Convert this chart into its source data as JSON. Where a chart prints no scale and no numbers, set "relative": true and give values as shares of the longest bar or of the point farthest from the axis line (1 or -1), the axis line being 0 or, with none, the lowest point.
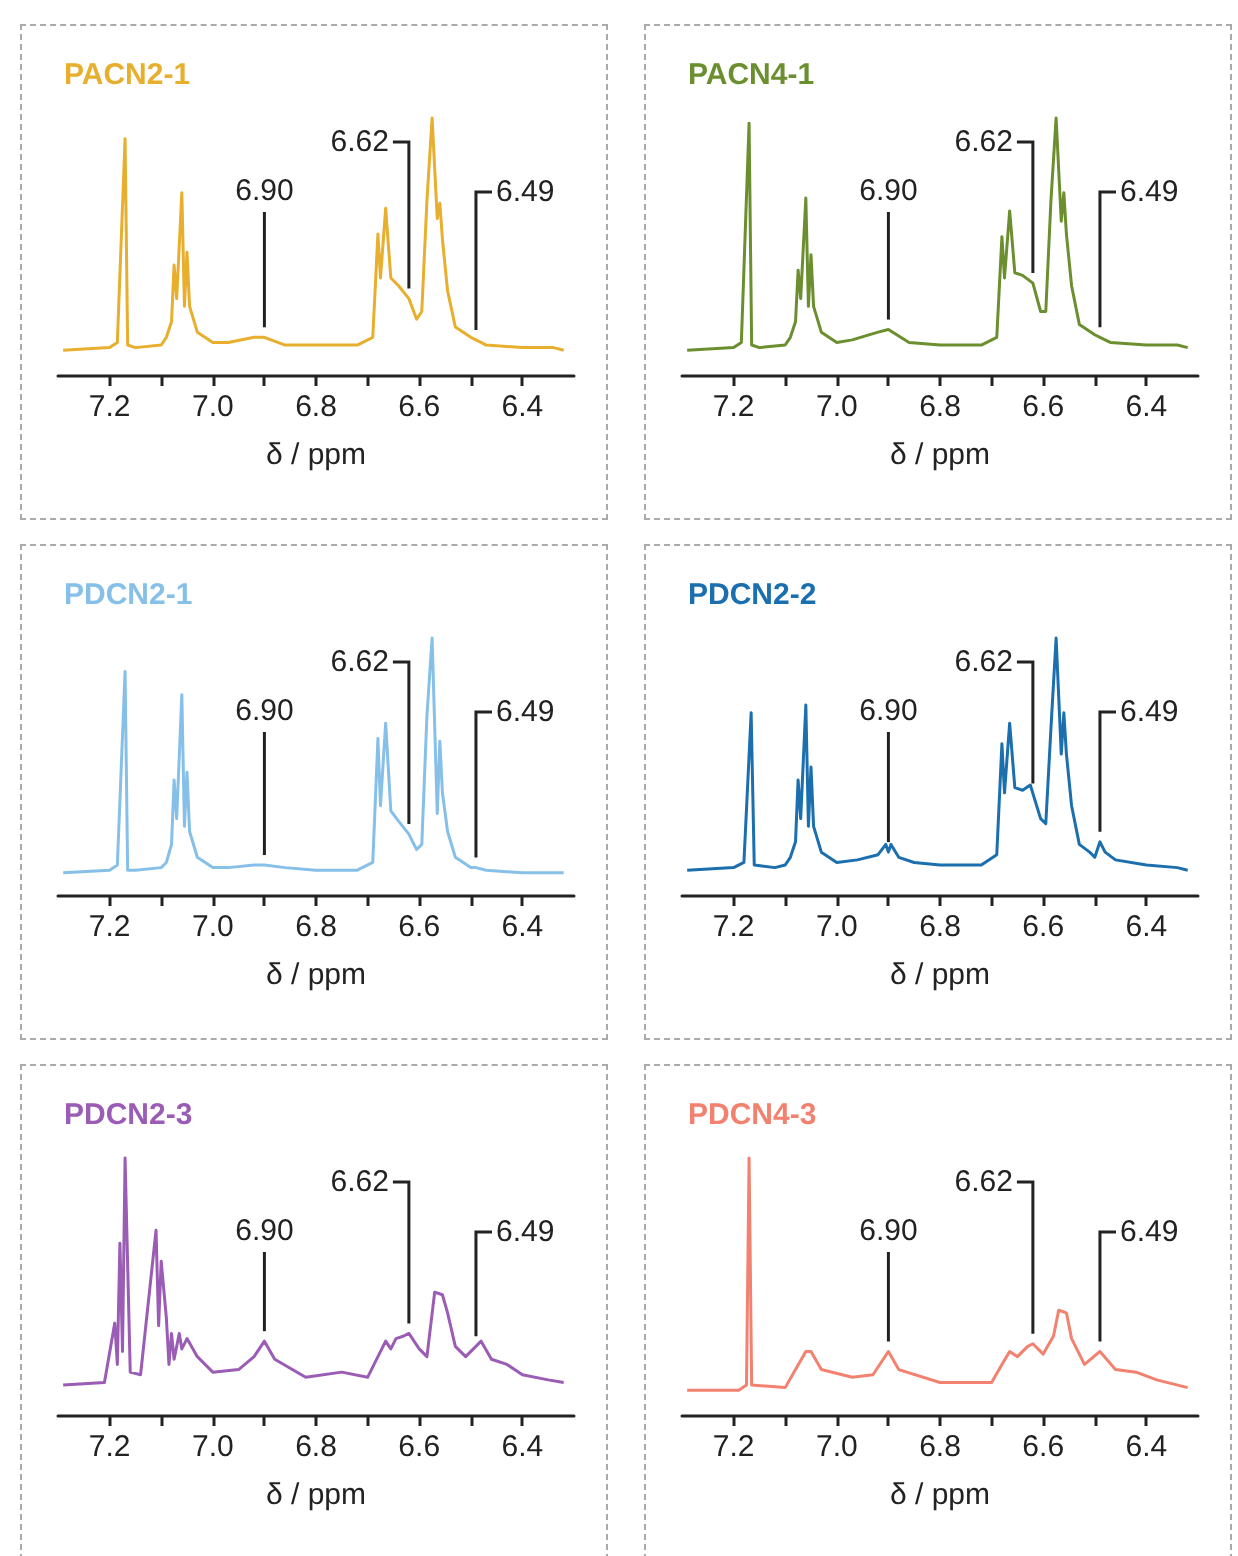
{
  "chart_data": [
    {
      "type": "line",
      "title": "PACN2-1",
      "xlabel": "δ / ppm",
      "color": "#e8ae2e",
      "relative": true,
      "xlim": [
        7.3,
        6.3
      ],
      "xticks": [
        7.2,
        {
          "value": 7.1,
          "label": null
        },
        {
          "value": 7,
          "label": "7.0"
        },
        {
          "value": 6.9,
          "label": null
        },
        6.8,
        {
          "value": 6.7,
          "label": null
        },
        6.6,
        {
          "value": 6.5,
          "label": null
        },
        6.4
      ],
      "ref_lines": [
        {
          "axis": "x",
          "value": 6.9,
          "label": "6.90"
        },
        {
          "axis": "x",
          "value": 6.62,
          "label": "6.62"
        },
        {
          "axis": "x",
          "value": 6.49,
          "label": "6.49"
        }
      ],
      "x": [
        7.29,
        7.2,
        7.185,
        7.17,
        7.165,
        7.15,
        7.1,
        7.09,
        7.08,
        7.075,
        7.07,
        7.06,
        7.055,
        7.05,
        7.045,
        7.03,
        7.0,
        6.97,
        6.92,
        6.9,
        6.86,
        6.8,
        6.72,
        6.69,
        6.68,
        6.675,
        6.665,
        6.655,
        6.64,
        6.62,
        6.605,
        6.595,
        6.585,
        6.575,
        6.565,
        6.56,
        6.555,
        6.545,
        6.53,
        6.5,
        6.49,
        6.47,
        6.4,
        6.34,
        6.32
      ],
      "values": [
        0.1,
        0.11,
        0.13,
        0.92,
        0.12,
        0.11,
        0.12,
        0.15,
        0.21,
        0.43,
        0.3,
        0.71,
        0.27,
        0.48,
        0.27,
        0.17,
        0.13,
        0.13,
        0.15,
        0.15,
        0.12,
        0.12,
        0.12,
        0.15,
        0.55,
        0.38,
        0.65,
        0.38,
        0.35,
        0.3,
        0.22,
        0.25,
        0.68,
        1.0,
        0.61,
        0.67,
        0.53,
        0.33,
        0.19,
        0.15,
        0.14,
        0.12,
        0.11,
        0.11,
        0.1
      ]
    },
    {
      "type": "line",
      "title": "PACN4-1",
      "xlabel": "δ / ppm",
      "color": "#6b8f2f",
      "relative": true,
      "xlim": [
        7.3,
        6.3
      ],
      "xticks": [
        7.2,
        {
          "value": 7.1,
          "label": null
        },
        {
          "value": 7,
          "label": "7.0"
        },
        {
          "value": 6.9,
          "label": null
        },
        6.8,
        {
          "value": 6.7,
          "label": null
        },
        6.6,
        {
          "value": 6.5,
          "label": null
        },
        6.4
      ],
      "ref_lines": [
        {
          "axis": "x",
          "value": 6.9,
          "label": "6.90"
        },
        {
          "axis": "x",
          "value": 6.62,
          "label": "6.62"
        },
        {
          "axis": "x",
          "value": 6.49,
          "label": "6.49"
        }
      ],
      "x": [
        7.29,
        7.2,
        7.185,
        7.17,
        7.165,
        7.15,
        7.1,
        7.09,
        7.08,
        7.075,
        7.07,
        7.06,
        7.055,
        7.05,
        7.045,
        7.03,
        7.0,
        6.97,
        6.92,
        6.9,
        6.86,
        6.8,
        6.72,
        6.69,
        6.68,
        6.675,
        6.665,
        6.655,
        6.64,
        6.62,
        6.605,
        6.595,
        6.585,
        6.575,
        6.565,
        6.56,
        6.555,
        6.545,
        6.53,
        6.5,
        6.49,
        6.47,
        6.4,
        6.34,
        6.32
      ],
      "values": [
        0.1,
        0.11,
        0.13,
        0.98,
        0.12,
        0.11,
        0.12,
        0.15,
        0.21,
        0.41,
        0.3,
        0.69,
        0.27,
        0.47,
        0.27,
        0.17,
        0.13,
        0.14,
        0.17,
        0.18,
        0.13,
        0.12,
        0.12,
        0.15,
        0.54,
        0.38,
        0.64,
        0.4,
        0.39,
        0.36,
        0.25,
        0.25,
        0.68,
        1.0,
        0.6,
        0.71,
        0.55,
        0.35,
        0.2,
        0.16,
        0.15,
        0.13,
        0.12,
        0.12,
        0.11
      ]
    },
    {
      "type": "line",
      "title": "PDCN2-1",
      "xlabel": "δ / ppm",
      "color": "#86c0e8",
      "relative": true,
      "xlim": [
        7.3,
        6.3
      ],
      "xticks": [
        7.2,
        {
          "value": 7.1,
          "label": null
        },
        {
          "value": 7,
          "label": "7.0"
        },
        {
          "value": 6.9,
          "label": null
        },
        6.8,
        {
          "value": 6.7,
          "label": null
        },
        6.6,
        {
          "value": 6.5,
          "label": null
        },
        6.4
      ],
      "ref_lines": [
        {
          "axis": "x",
          "value": 6.9,
          "label": "6.90"
        },
        {
          "axis": "x",
          "value": 6.62,
          "label": "6.62"
        },
        {
          "axis": "x",
          "value": 6.49,
          "label": "6.49"
        }
      ],
      "x": [
        7.29,
        7.2,
        7.185,
        7.17,
        7.165,
        7.15,
        7.1,
        7.09,
        7.08,
        7.075,
        7.07,
        7.06,
        7.055,
        7.05,
        7.045,
        7.03,
        7.0,
        6.97,
        6.92,
        6.9,
        6.86,
        6.8,
        6.72,
        6.69,
        6.68,
        6.675,
        6.665,
        6.655,
        6.64,
        6.62,
        6.605,
        6.595,
        6.585,
        6.575,
        6.565,
        6.56,
        6.555,
        6.545,
        6.53,
        6.5,
        6.49,
        6.47,
        6.4,
        6.34,
        6.32
      ],
      "values": [
        0.09,
        0.1,
        0.12,
        0.87,
        0.1,
        0.1,
        0.11,
        0.13,
        0.2,
        0.45,
        0.3,
        0.78,
        0.27,
        0.48,
        0.25,
        0.15,
        0.11,
        0.11,
        0.12,
        0.12,
        0.11,
        0.1,
        0.1,
        0.13,
        0.61,
        0.35,
        0.67,
        0.33,
        0.29,
        0.24,
        0.18,
        0.2,
        0.7,
        1.0,
        0.32,
        0.6,
        0.4,
        0.25,
        0.15,
        0.11,
        0.11,
        0.1,
        0.09,
        0.09,
        0.09
      ]
    },
    {
      "type": "line",
      "title": "PDCN2-2",
      "xlabel": "δ / ppm",
      "color": "#1b6fae",
      "relative": true,
      "xlim": [
        7.3,
        6.3
      ],
      "xticks": [
        7.2,
        {
          "value": 7.1,
          "label": null
        },
        {
          "value": 7,
          "label": "7.0"
        },
        {
          "value": 6.9,
          "label": null
        },
        6.8,
        {
          "value": 6.7,
          "label": null
        },
        6.6,
        {
          "value": 6.5,
          "label": null
        },
        6.4
      ],
      "ref_lines": [
        {
          "axis": "x",
          "value": 6.9,
          "label": "6.90"
        },
        {
          "axis": "x",
          "value": 6.62,
          "label": "6.62"
        },
        {
          "axis": "x",
          "value": 6.49,
          "label": "6.49"
        }
      ],
      "x": [
        7.29,
        7.2,
        7.18,
        7.166,
        7.16,
        7.12,
        7.1,
        7.09,
        7.08,
        7.075,
        7.07,
        7.06,
        7.055,
        7.05,
        7.045,
        7.03,
        7.0,
        6.96,
        6.92,
        6.905,
        6.9,
        6.895,
        6.88,
        6.85,
        6.8,
        6.72,
        6.69,
        6.68,
        6.675,
        6.665,
        6.655,
        6.64,
        6.625,
        6.605,
        6.595,
        6.585,
        6.575,
        6.565,
        6.56,
        6.555,
        6.545,
        6.53,
        6.51,
        6.5,
        6.49,
        6.48,
        6.46,
        6.4,
        6.34,
        6.32
      ],
      "values": [
        0.1,
        0.11,
        0.13,
        0.71,
        0.12,
        0.11,
        0.12,
        0.15,
        0.21,
        0.45,
        0.3,
        0.74,
        0.27,
        0.5,
        0.27,
        0.17,
        0.13,
        0.14,
        0.16,
        0.2,
        0.17,
        0.2,
        0.15,
        0.13,
        0.12,
        0.12,
        0.16,
        0.59,
        0.4,
        0.67,
        0.42,
        0.41,
        0.43,
        0.3,
        0.28,
        0.65,
        1.0,
        0.55,
        0.71,
        0.55,
        0.35,
        0.2,
        0.17,
        0.15,
        0.21,
        0.17,
        0.14,
        0.12,
        0.11,
        0.1
      ]
    },
    {
      "type": "line",
      "title": "PDCN2-3",
      "xlabel": "δ / ppm",
      "color": "#9a5cb4",
      "relative": true,
      "xlim": [
        7.3,
        6.3
      ],
      "xticks": [
        7.2,
        {
          "value": 7.1,
          "label": null
        },
        {
          "value": 7,
          "label": "7.0"
        },
        {
          "value": 6.9,
          "label": null
        },
        6.8,
        {
          "value": 6.7,
          "label": null
        },
        6.6,
        {
          "value": 6.5,
          "label": null
        },
        6.4
      ],
      "ref_lines": [
        {
          "axis": "x",
          "value": 6.9,
          "label": "6.90"
        },
        {
          "axis": "x",
          "value": 6.62,
          "label": "6.62"
        },
        {
          "axis": "x",
          "value": 6.49,
          "label": "6.49"
        }
      ],
      "x": [
        7.29,
        7.21,
        7.19,
        7.185,
        7.18,
        7.175,
        7.17,
        7.16,
        7.14,
        7.11,
        7.105,
        7.1,
        7.09,
        7.085,
        7.08,
        7.075,
        7.065,
        7.06,
        7.05,
        7.03,
        7.0,
        6.95,
        6.92,
        6.9,
        6.88,
        6.82,
        6.75,
        6.7,
        6.68,
        6.665,
        6.655,
        6.645,
        6.63,
        6.62,
        6.6,
        6.585,
        6.57,
        6.555,
        6.545,
        6.53,
        6.51,
        6.48,
        6.46,
        6.43,
        6.4,
        6.35,
        6.32
      ],
      "values": [
        0.12,
        0.13,
        0.36,
        0.2,
        0.67,
        0.25,
        1.0,
        0.17,
        0.16,
        0.72,
        0.35,
        0.6,
        0.38,
        0.2,
        0.32,
        0.22,
        0.32,
        0.26,
        0.3,
        0.23,
        0.17,
        0.18,
        0.23,
        0.29,
        0.22,
        0.15,
        0.17,
        0.15,
        0.23,
        0.29,
        0.26,
        0.3,
        0.31,
        0.32,
        0.26,
        0.23,
        0.48,
        0.47,
        0.4,
        0.27,
        0.23,
        0.29,
        0.22,
        0.2,
        0.16,
        0.14,
        0.13
      ]
    },
    {
      "type": "line",
      "title": "PDCN4-3",
      "xlabel": "δ / ppm",
      "color": "#f2826f",
      "relative": true,
      "xlim": [
        7.3,
        6.3
      ],
      "xticks": [
        7.2,
        {
          "value": 7.1,
          "label": null
        },
        {
          "value": 7,
          "label": "7.0"
        },
        {
          "value": 6.9,
          "label": null
        },
        6.8,
        {
          "value": 6.7,
          "label": null
        },
        6.6,
        {
          "value": 6.5,
          "label": null
        },
        6.4
      ],
      "ref_lines": [
        {
          "axis": "x",
          "value": 6.9,
          "label": "6.90"
        },
        {
          "axis": "x",
          "value": 6.62,
          "label": "6.62"
        },
        {
          "axis": "x",
          "value": 6.49,
          "label": "6.49"
        }
      ],
      "x": [
        7.29,
        7.19,
        7.175,
        7.17,
        7.165,
        7.1,
        7.08,
        7.06,
        7.05,
        7.03,
        6.97,
        6.93,
        6.9,
        6.88,
        6.8,
        6.7,
        6.68,
        6.665,
        6.65,
        6.63,
        6.62,
        6.6,
        6.58,
        6.57,
        6.555,
        6.545,
        6.52,
        6.49,
        6.46,
        6.42,
        6.38,
        6.32
      ],
      "values": [
        0.1,
        0.1,
        0.12,
        1.0,
        0.12,
        0.11,
        0.18,
        0.25,
        0.25,
        0.18,
        0.15,
        0.16,
        0.25,
        0.18,
        0.13,
        0.13,
        0.2,
        0.25,
        0.23,
        0.27,
        0.28,
        0.24,
        0.31,
        0.41,
        0.4,
        0.3,
        0.2,
        0.25,
        0.18,
        0.17,
        0.14,
        0.11
      ]
    }
  ]
}
